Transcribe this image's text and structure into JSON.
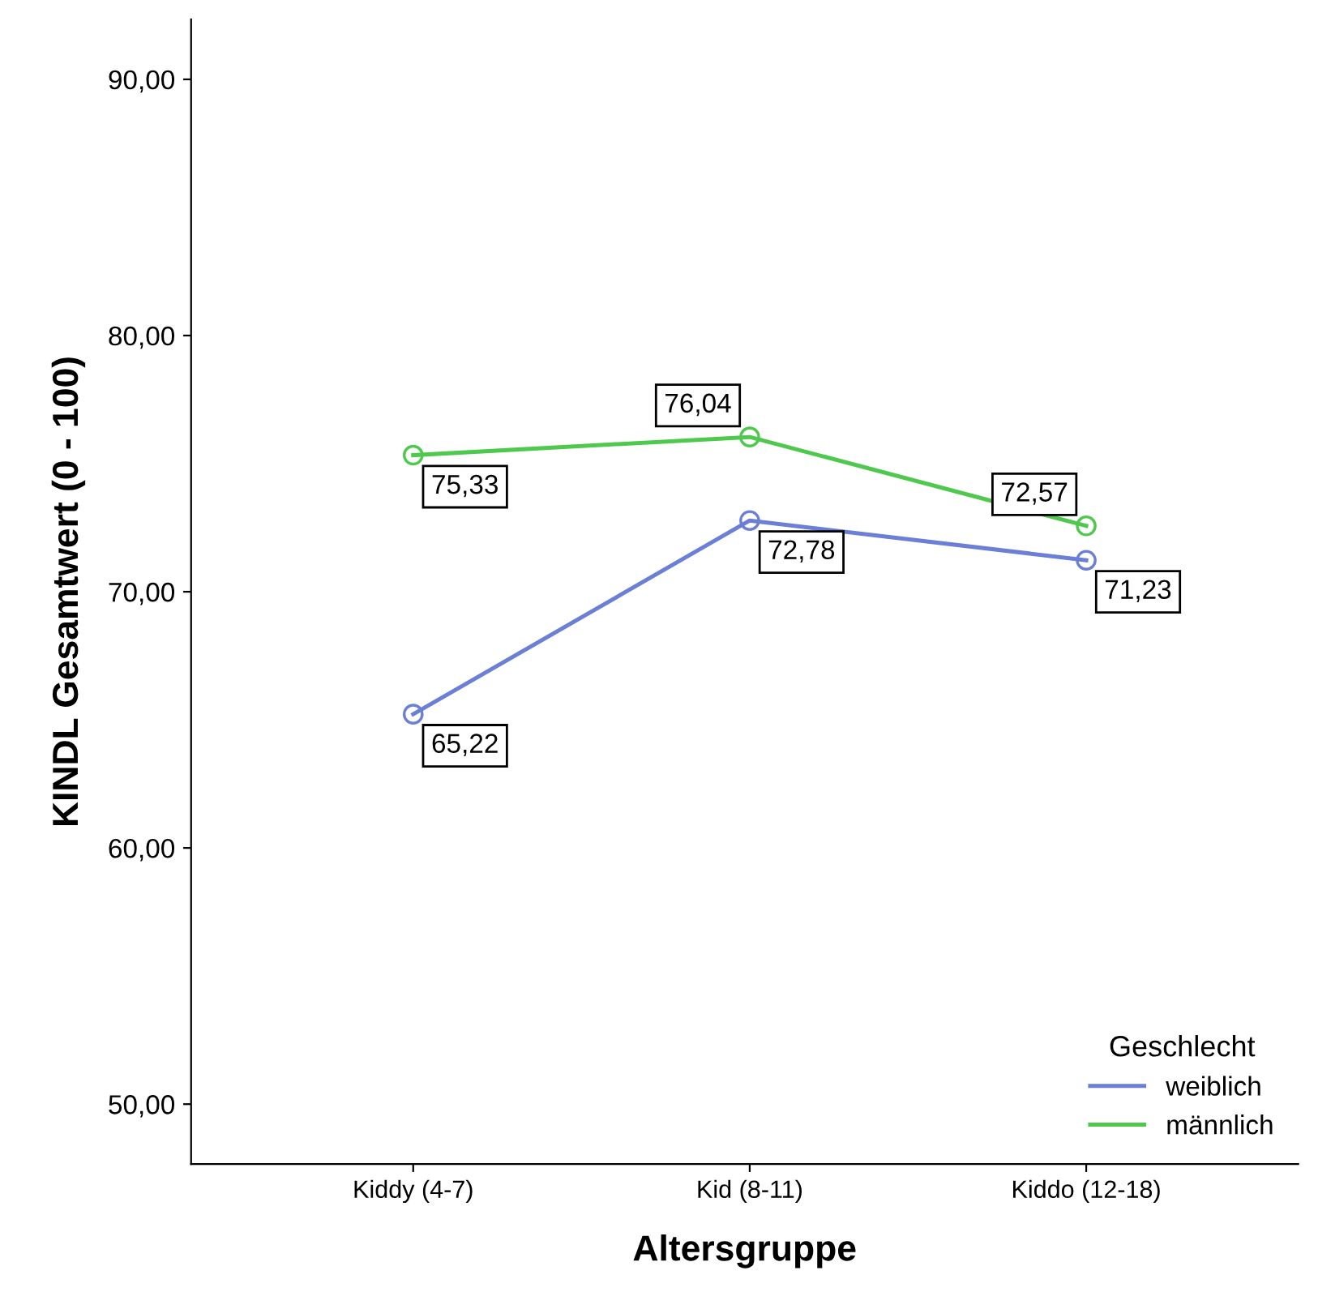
{
  "chart_data": {
    "type": "line",
    "xlabel": "Altersgruppe",
    "ylabel": "KINDL Gesamtwert (0 - 100)",
    "legend_title": "Geschlecht",
    "categories": [
      "Kiddy (4-7)",
      "Kid (8-11)",
      "Kiddo (12-18)"
    ],
    "series": [
      {
        "name": "weiblich",
        "color": "#6b7fd6",
        "values": [
          65.22,
          72.78,
          71.23
        ],
        "value_labels": [
          "65,22",
          "72,78",
          "71,23"
        ]
      },
      {
        "name": "männlich",
        "color": "#4ec94e",
        "values": [
          75.33,
          76.04,
          72.57
        ],
        "value_labels": [
          "75,33",
          "76,04",
          "72,57"
        ]
      }
    ],
    "ylim": [
      47.66,
      92.34
    ],
    "yticks": [
      {
        "value": 50,
        "label": "50,00"
      },
      {
        "value": 60,
        "label": "60,00"
      },
      {
        "value": 70,
        "label": "70,00"
      },
      {
        "value": 80,
        "label": "80,00"
      },
      {
        "value": 90,
        "label": "90,00"
      }
    ],
    "marker": "circle",
    "line_style": "solid",
    "grid": false,
    "legend": "bottom right"
  }
}
